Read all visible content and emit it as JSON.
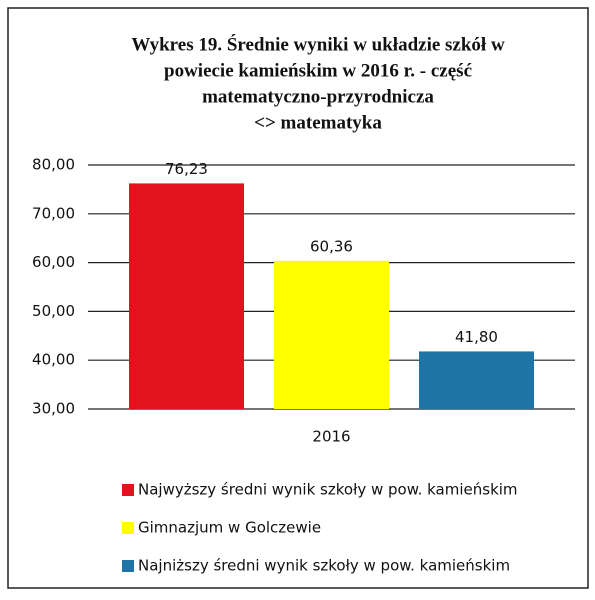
{
  "chart_data": {
    "type": "bar",
    "title": [
      "Wykres  19. Średnie wyniki w  układzie szkół w",
      "powiecie kamieńskim w 2016 r. - część",
      "matematyczno-przyrodnicza",
      "<> matematyka"
    ],
    "categories": [
      "2016"
    ],
    "series": [
      {
        "name": "Najwyższy średni wynik szkoły w pow. kamieńskim",
        "color": "#e3121f",
        "values": [
          76.23
        ],
        "value_labels": [
          "76,23"
        ]
      },
      {
        "name": "Gimnazjum w Golczewie",
        "color": "#ffff00",
        "values": [
          60.36
        ],
        "value_labels": [
          "60,36"
        ]
      },
      {
        "name": "Najniższy średni wynik szkoły w pow. kamieńskim",
        "color": "#1f74a6",
        "values": [
          41.8
        ],
        "value_labels": [
          "41,80"
        ]
      }
    ],
    "ylim": [
      30,
      80
    ],
    "yticks": [
      {
        "value": 30,
        "label": "30,00"
      },
      {
        "value": 40,
        "label": "40,00"
      },
      {
        "value": 50,
        "label": "50,00"
      },
      {
        "value": 60,
        "label": "60,00"
      },
      {
        "value": 70,
        "label": "70,00"
      },
      {
        "value": 80,
        "label": "80,00"
      }
    ],
    "grid": true,
    "legend": "bottom"
  }
}
